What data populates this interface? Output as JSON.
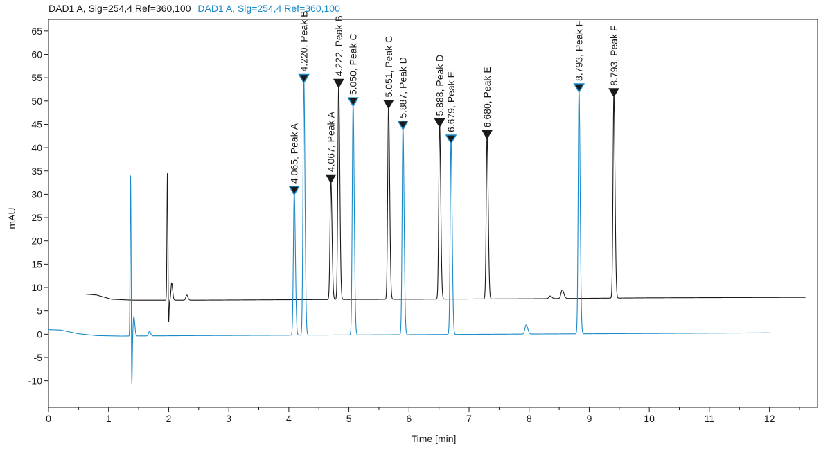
{
  "chart_data": {
    "type": "line",
    "xlabel": "Time [min]",
    "ylabel": "mAU",
    "xlim": [
      0,
      12.8
    ],
    "ylim": [
      -15.7,
      67.5
    ],
    "x_ticks": [
      0,
      1,
      2,
      3,
      4,
      5,
      6,
      7,
      8,
      9,
      10,
      11,
      12
    ],
    "y_ticks": [
      -10,
      -5,
      0,
      5,
      10,
      15,
      20,
      25,
      30,
      35,
      40,
      45,
      50,
      55,
      60,
      65
    ],
    "legend_placement": "top-left",
    "series": [
      {
        "name": "DAD1 A, Sig=254,4 Ref=360,100",
        "color": "#1a1a1a",
        "x_range": [
          0.6,
          12.6
        ],
        "baseline": [
          [
            0.6,
            8.6
          ],
          [
            0.8,
            8.4
          ],
          [
            1.05,
            7.5
          ],
          [
            1.4,
            7.3
          ],
          [
            2.5,
            7.3
          ],
          [
            4.0,
            7.4
          ],
          [
            6.0,
            7.5
          ],
          [
            8.0,
            7.6
          ],
          [
            10.0,
            7.8
          ],
          [
            12.6,
            7.9
          ]
        ],
        "peaks": [
          {
            "t": 1.98,
            "h": 35.0,
            "w": 0.008
          },
          {
            "t": 1.995,
            "h": -4.2,
            "w": 0.006
          },
          {
            "t": 2.05,
            "h": 11.0,
            "w": 0.012
          },
          {
            "t": 2.3,
            "h": 8.4,
            "w": 0.015
          },
          {
            "t": 4.7,
            "h": 33.0,
            "w": 0.014
          },
          {
            "t": 4.83,
            "h": 53.5,
            "w": 0.014
          },
          {
            "t": 5.66,
            "h": 49.0,
            "w": 0.014
          },
          {
            "t": 6.51,
            "h": 45.0,
            "w": 0.014
          },
          {
            "t": 7.3,
            "h": 42.5,
            "w": 0.014
          },
          {
            "t": 8.35,
            "h": 8.2,
            "w": 0.02
          },
          {
            "t": 8.55,
            "h": 9.5,
            "w": 0.02
          },
          {
            "t": 9.41,
            "h": 51.5,
            "w": 0.014
          }
        ]
      },
      {
        "name": "DAD1 A, Sig=254,4 Ref=360,100",
        "color": "#1a8ac8",
        "x_range": [
          0.0,
          12.0
        ],
        "baseline": [
          [
            0.0,
            1.0
          ],
          [
            0.2,
            0.9
          ],
          [
            0.35,
            0.5
          ],
          [
            0.5,
            0.1
          ],
          [
            0.8,
            -0.3
          ],
          [
            1.2,
            -0.4
          ],
          [
            2.5,
            -0.3
          ],
          [
            6.0,
            -0.1
          ],
          [
            9.0,
            0.1
          ],
          [
            12.0,
            0.3
          ]
        ],
        "peaks": [
          {
            "t": 1.365,
            "h": 34.0,
            "w": 0.007
          },
          {
            "t": 1.385,
            "h": -13.4,
            "w": 0.006
          },
          {
            "t": 1.42,
            "h": 3.8,
            "w": 0.012
          },
          {
            "t": 1.68,
            "h": 0.6,
            "w": 0.015
          },
          {
            "t": 4.09,
            "h": 30.5,
            "w": 0.014
          },
          {
            "t": 4.25,
            "h": 54.5,
            "w": 0.014
          },
          {
            "t": 5.07,
            "h": 49.5,
            "w": 0.014
          },
          {
            "t": 5.9,
            "h": 44.5,
            "w": 0.014
          },
          {
            "t": 6.7,
            "h": 41.5,
            "w": 0.014
          },
          {
            "t": 7.95,
            "h": 2.0,
            "w": 0.02
          },
          {
            "t": 8.83,
            "h": 52.5,
            "w": 0.014
          }
        ]
      }
    ],
    "annotations": [
      {
        "text": "4.065, Peak A",
        "x": 4.09,
        "y": 30.5,
        "series": 1
      },
      {
        "text": "4.220, Peak B",
        "x": 4.25,
        "y": 54.5,
        "series": 1
      },
      {
        "text": "4.067, Peak A",
        "x": 4.7,
        "y": 33.0,
        "series": 0
      },
      {
        "text": "4.222, Peak B",
        "x": 4.83,
        "y": 53.5,
        "series": 0
      },
      {
        "text": "5.050, Peak C",
        "x": 5.07,
        "y": 49.5,
        "series": 1
      },
      {
        "text": "5.051, Peak C",
        "x": 5.66,
        "y": 49.0,
        "series": 0
      },
      {
        "text": "5.887, Peak D",
        "x": 5.9,
        "y": 44.5,
        "series": 1
      },
      {
        "text": "5.888, Peak D",
        "x": 6.51,
        "y": 45.0,
        "series": 0
      },
      {
        "text": "6.679, Peak E",
        "x": 6.7,
        "y": 41.5,
        "series": 1
      },
      {
        "text": "6.680, Peak E",
        "x": 7.3,
        "y": 42.5,
        "series": 0
      },
      {
        "text": "8.793, Peak F",
        "x": 8.83,
        "y": 52.5,
        "series": 1
      },
      {
        "text": "8.793, Peak F",
        "x": 9.41,
        "y": 51.5,
        "series": 0
      }
    ]
  }
}
